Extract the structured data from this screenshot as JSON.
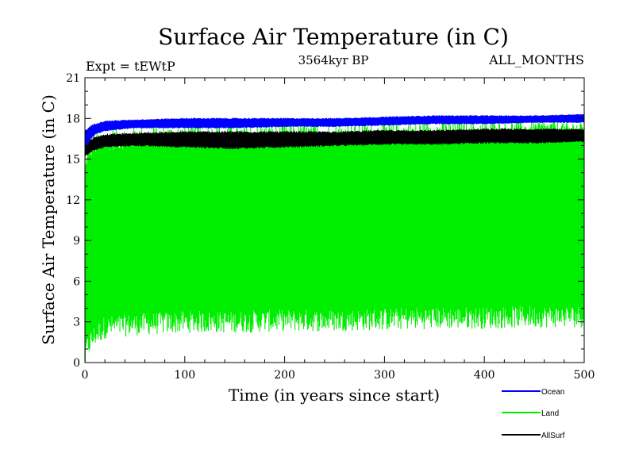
{
  "chart_data": {
    "type": "line",
    "title": "Surface Air Temperature (in C)",
    "subtitle": "3564kyr BP",
    "annotation_left": "Expt = tEWtP",
    "annotation_right": "ALL_MONTHS",
    "xlabel": "Time (in years since start)",
    "ylabel": "Surface Air Temperature (in C)",
    "xlim": [
      0,
      500
    ],
    "ylim": [
      0,
      21
    ],
    "x_ticks": [
      "0",
      "100",
      "200",
      "300",
      "400",
      "500"
    ],
    "y_ticks": [
      "0",
      "3",
      "6",
      "9",
      "12",
      "15",
      "18",
      "21"
    ],
    "grid": false,
    "legend_position": "bottom-right",
    "series": [
      {
        "name": "Ocean",
        "color": "#0000ff",
        "description": "monthly values oscillating in a narrow band",
        "x": [
          0,
          2,
          5,
          10,
          20,
          50,
          100,
          150,
          200,
          250,
          300,
          350,
          400,
          450,
          500
        ],
        "low": [
          15.8,
          16.0,
          16.4,
          16.8,
          17.1,
          17.3,
          17.3,
          17.3,
          17.4,
          17.4,
          17.5,
          17.6,
          17.6,
          17.7,
          17.7
        ],
        "high": [
          17.0,
          17.2,
          17.4,
          17.6,
          17.8,
          17.9,
          18.0,
          18.0,
          18.0,
          18.0,
          18.1,
          18.2,
          18.2,
          18.2,
          18.3
        ]
      },
      {
        "name": "Land",
        "color": "#00ee00",
        "description": "large seasonal cycle spanning roughly 3 to 17 C",
        "x": [
          0,
          2,
          5,
          10,
          20,
          50,
          100,
          150,
          200,
          250,
          300,
          350,
          400,
          450,
          500
        ],
        "low": [
          0.3,
          1.0,
          1.5,
          2.0,
          2.6,
          2.8,
          3.0,
          3.0,
          3.1,
          3.1,
          3.2,
          3.3,
          3.3,
          3.4,
          3.4
        ],
        "high": [
          14.0,
          15.2,
          15.8,
          16.1,
          16.4,
          16.6,
          16.7,
          16.7,
          16.8,
          16.8,
          16.9,
          17.0,
          17.0,
          17.1,
          17.1
        ]
      },
      {
        "name": "AllSurf",
        "color": "#000000",
        "description": "global surface mean, seasonal band just below the ocean curve",
        "x": [
          0,
          2,
          5,
          10,
          20,
          50,
          100,
          150,
          200,
          250,
          300,
          350,
          400,
          450,
          500
        ],
        "low": [
          15.2,
          15.3,
          15.5,
          15.7,
          15.9,
          16.0,
          15.9,
          15.8,
          15.9,
          16.0,
          16.1,
          16.1,
          16.2,
          16.2,
          16.3
        ],
        "high": [
          16.0,
          16.2,
          16.4,
          16.6,
          16.8,
          16.9,
          17.0,
          17.0,
          17.0,
          17.0,
          17.1,
          17.1,
          17.2,
          17.2,
          17.2
        ]
      }
    ]
  }
}
